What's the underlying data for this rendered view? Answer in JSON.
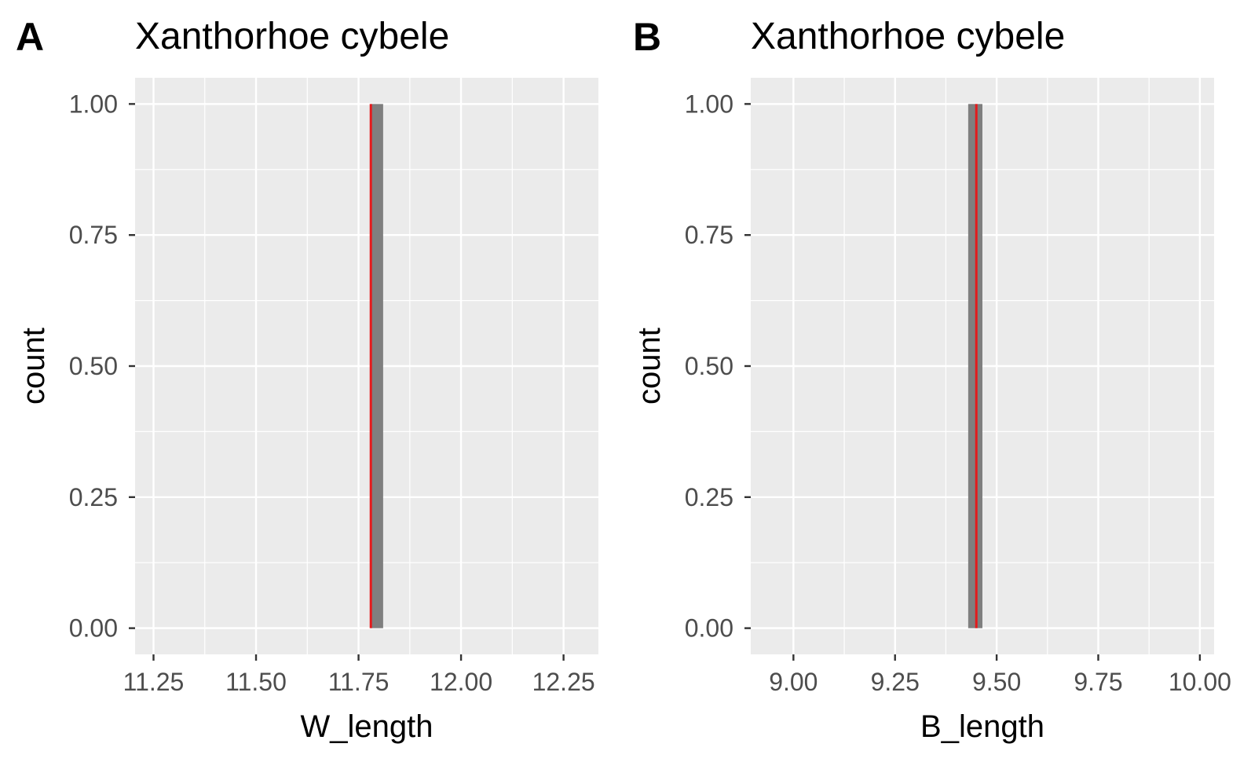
{
  "chart_data": [
    {
      "type": "bar",
      "panel_label": "A",
      "title": "Xanthorhoe cybele",
      "xlabel": "W_length",
      "ylabel": "count",
      "xlim": [
        11.205,
        12.335
      ],
      "ylim": [
        -0.05,
        1.05
      ],
      "x_ticks": [
        11.25,
        11.5,
        11.75,
        12.0,
        12.25
      ],
      "x_tick_labels": [
        "11.25",
        "11.50",
        "11.75",
        "12.00",
        "12.25"
      ],
      "y_ticks": [
        0,
        0.25,
        0.5,
        0.75,
        1.0
      ],
      "y_tick_labels": [
        "0.00",
        "0.25",
        "0.50",
        "0.75",
        "1.00"
      ],
      "bins": [
        {
          "xmin": 11.78,
          "xmax": 11.81,
          "count": 1
        }
      ],
      "reference_line": {
        "x": 11.78,
        "color": "#e41a1c"
      },
      "bar_color": "#7f7f7f",
      "grid": true,
      "panel_background": "#ebebeb"
    },
    {
      "type": "bar",
      "panel_label": "B",
      "title": "Xanthorhoe cybele",
      "xlabel": "B_length",
      "ylabel": "count",
      "xlim": [
        8.895,
        10.035
      ],
      "ylim": [
        -0.05,
        1.05
      ],
      "x_ticks": [
        9.0,
        9.25,
        9.5,
        9.75,
        10.0
      ],
      "x_tick_labels": [
        "9.00",
        "9.25",
        "9.50",
        "9.75",
        "10.00"
      ],
      "y_ticks": [
        0,
        0.25,
        0.5,
        0.75,
        1.0
      ],
      "y_tick_labels": [
        "0.00",
        "0.25",
        "0.50",
        "0.75",
        "1.00"
      ],
      "bins": [
        {
          "xmin": 9.43,
          "xmax": 9.465,
          "count": 1
        }
      ],
      "reference_line": {
        "x": 9.45,
        "color": "#e41a1c"
      },
      "bar_color": "#7f7f7f",
      "grid": true,
      "panel_background": "#ebebeb"
    }
  ]
}
